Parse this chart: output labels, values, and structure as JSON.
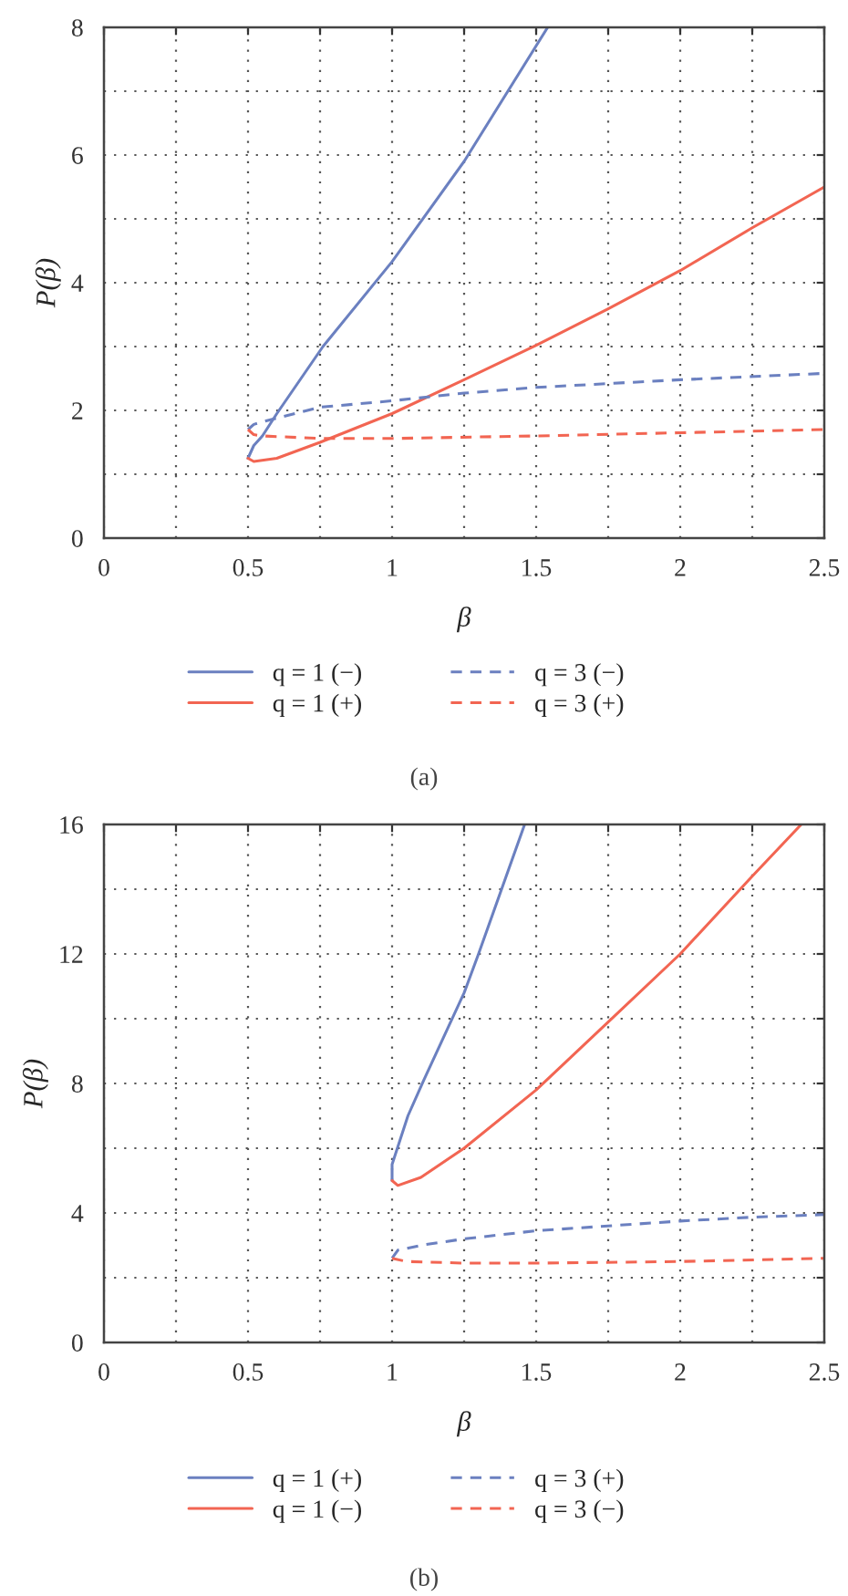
{
  "chart_data": [
    {
      "type": "line",
      "xlabel": "β",
      "ylabel": "P(β)",
      "xlim": [
        0,
        2.5
      ],
      "ylim": [
        0,
        8
      ],
      "xticks": [
        0,
        {
          "value": 0.25,
          "label": null
        },
        0.5,
        {
          "value": 0.75,
          "label": null
        },
        1,
        {
          "value": 1.25,
          "label": null
        },
        1.5,
        {
          "value": 1.75,
          "label": null
        },
        2,
        {
          "value": 2.25,
          "label": null
        },
        2.5
      ],
      "yticks": [
        0,
        {
          "value": 1,
          "label": null
        },
        2,
        {
          "value": 3,
          "label": null
        },
        4,
        {
          "value": 5,
          "label": null
        },
        6,
        {
          "value": 7,
          "label": null
        },
        8
      ],
      "grid": true,
      "legend": "bottom",
      "annotations": [
        "(a)"
      ],
      "series": [
        {
          "name": "q = 1 (−)",
          "color": "#6b80c0",
          "line_style": "solid",
          "x": [
            0.5,
            0.52,
            0.55,
            0.6,
            0.76,
            1.0,
            1.25,
            1.54
          ],
          "values": [
            1.25,
            1.45,
            1.6,
            1.95,
            3.0,
            4.33,
            5.9,
            8.0
          ]
        },
        {
          "name": "q = 1 (+)",
          "color": "#f26552",
          "line_style": "solid",
          "x": [
            0.5,
            0.52,
            0.6,
            0.75,
            1.0,
            1.25,
            1.5,
            1.75,
            2.0,
            2.25,
            2.5
          ],
          "values": [
            1.25,
            1.2,
            1.25,
            1.5,
            1.95,
            2.48,
            3.02,
            3.59,
            4.19,
            4.86,
            5.5
          ]
        },
        {
          "name": "q = 3 (−)",
          "color": "#6b80c0",
          "line_style": "dashed",
          "x": [
            0.5,
            0.52,
            0.55,
            0.75,
            1.0,
            1.25,
            1.5,
            2.0,
            2.5
          ],
          "values": [
            1.7,
            1.78,
            1.82,
            2.05,
            2.15,
            2.27,
            2.36,
            2.48,
            2.58
          ]
        },
        {
          "name": "q = 3 (+)",
          "color": "#f26552",
          "line_style": "dashed",
          "x": [
            0.5,
            0.52,
            0.55,
            0.75,
            1.0,
            1.5,
            2.0,
            2.5
          ],
          "values": [
            1.7,
            1.62,
            1.6,
            1.56,
            1.56,
            1.6,
            1.65,
            1.7
          ]
        }
      ]
    },
    {
      "type": "line",
      "xlabel": "β",
      "ylabel": "P(β)",
      "xlim": [
        0,
        2.5
      ],
      "ylim": [
        0,
        16
      ],
      "xticks": [
        0,
        {
          "value": 0.25,
          "label": null
        },
        0.5,
        {
          "value": 0.75,
          "label": null
        },
        1,
        {
          "value": 1.25,
          "label": null
        },
        1.5,
        {
          "value": 1.75,
          "label": null
        },
        2,
        {
          "value": 2.25,
          "label": null
        },
        2.5
      ],
      "yticks": [
        0,
        {
          "value": 2,
          "label": null
        },
        4,
        {
          "value": 6,
          "label": null
        },
        8,
        {
          "value": 10,
          "label": null
        },
        12,
        {
          "value": 14,
          "label": null
        },
        16
      ],
      "grid": true,
      "legend": "bottom",
      "annotations": [
        "(b)"
      ],
      "series": [
        {
          "name": "q = 1 (+)",
          "color": "#6b80c0",
          "line_style": "solid",
          "x": [
            1.0,
            1.0,
            1.055,
            1.11,
            1.25,
            1.3,
            1.46
          ],
          "values": [
            5.0,
            5.5,
            7.0,
            8.1,
            10.8,
            12.0,
            16.0
          ]
        },
        {
          "name": "q = 1 (−)",
          "color": "#f26552",
          "line_style": "solid",
          "x": [
            1.0,
            1.02,
            1.1,
            1.25,
            1.5,
            1.75,
            2.0,
            2.25,
            2.42
          ],
          "values": [
            5.0,
            4.85,
            5.1,
            6.0,
            7.8,
            9.9,
            12.0,
            14.4,
            16.0
          ]
        },
        {
          "name": "q = 3 (+)",
          "color": "#6b80c0",
          "line_style": "dashed",
          "x": [
            1.0,
            1.02,
            1.1,
            1.25,
            1.5,
            1.75,
            2.0,
            2.25,
            2.5
          ],
          "values": [
            2.6,
            2.85,
            3.0,
            3.2,
            3.45,
            3.6,
            3.75,
            3.87,
            3.95
          ]
        },
        {
          "name": "q = 3 (−)",
          "color": "#f26552",
          "line_style": "dashed",
          "x": [
            1.0,
            1.05,
            1.25,
            1.5,
            2.0,
            2.5
          ],
          "values": [
            2.6,
            2.5,
            2.45,
            2.45,
            2.5,
            2.6
          ]
        }
      ]
    }
  ]
}
